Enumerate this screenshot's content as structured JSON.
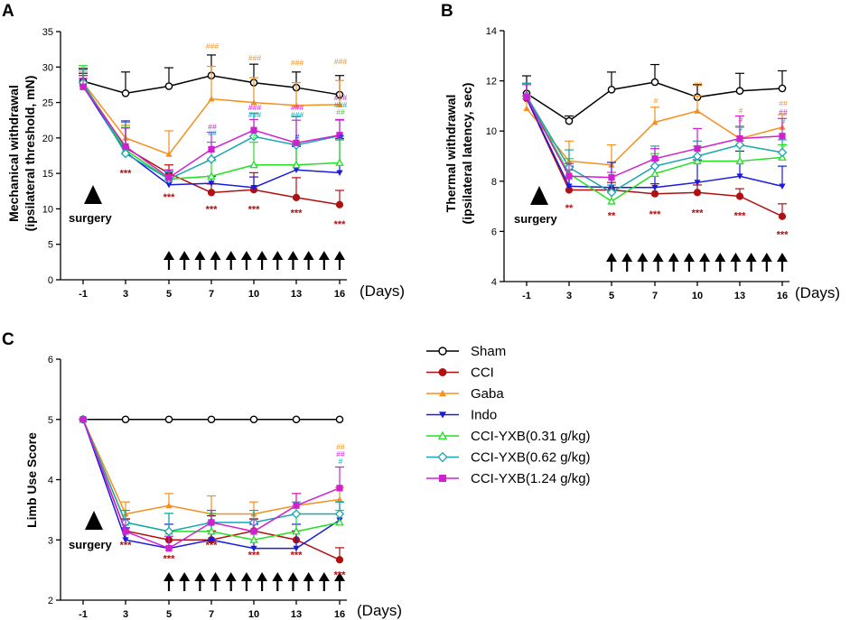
{
  "figure": {
    "x_unit_label": "(Days)",
    "surgery_label": "surgery"
  },
  "legend": [
    {
      "name": "Sham",
      "color": "#000000",
      "marker": "open-circle"
    },
    {
      "name": "CCI",
      "color": "#b01010",
      "marker": "filled-circle"
    },
    {
      "name": "Gaba",
      "color": "#f5901e",
      "marker": "triangle-up"
    },
    {
      "name": "Indo",
      "color": "#1a1ae0",
      "marker": "triangle-down"
    },
    {
      "name": "CCI-YXB(0.31 g/kg)",
      "color": "#22e022",
      "marker": "open-triangle"
    },
    {
      "name": "CCI-YXB(0.62 g/kg)",
      "color": "#1aa6b0",
      "marker": "open-diamond"
    },
    {
      "name": "CCI-YXB(1.24 g/kg)",
      "color": "#d020d0",
      "marker": "filled-square"
    }
  ],
  "chart_data": [
    {
      "panel": "A",
      "type": "line",
      "ylabel_line1": "Mechanical withdrawal",
      "ylabel_line2": "(ipsilateral threshold, mN)",
      "ylim": [
        0,
        35
      ],
      "yticks": [
        0,
        5,
        10,
        15,
        20,
        25,
        30,
        35
      ],
      "x_ticks": [
        "-1",
        "3",
        "5",
        "7",
        "10",
        "13",
        "16"
      ],
      "x": [
        "-1",
        "3",
        "5",
        "7",
        "10",
        "13",
        "16"
      ],
      "series": [
        {
          "name": "Sham",
          "values": [
            28.0,
            26.3,
            27.3,
            28.8,
            27.8,
            27.1,
            26.1
          ],
          "err": [
            1.8,
            3.0,
            2.6,
            2.9,
            2.6,
            2.2,
            2.7
          ]
        },
        {
          "name": "CCI",
          "values": [
            27.6,
            18.6,
            15.0,
            12.3,
            12.7,
            11.6,
            10.6
          ],
          "err": [
            1.2,
            2.8,
            1.2,
            1.2,
            2.4,
            2.8,
            2.0
          ]
        },
        {
          "name": "Gaba",
          "values": [
            27.8,
            20.0,
            17.7,
            25.5,
            25.0,
            24.6,
            24.7
          ],
          "err": [
            1.5,
            1.8,
            3.3,
            4.6,
            3.5,
            3.2,
            3.4
          ]
        },
        {
          "name": "Indo",
          "values": [
            27.3,
            18.0,
            13.4,
            13.6,
            13.0,
            15.5,
            15.1
          ],
          "err": [
            1.8,
            4.4,
            1.8,
            1.0,
            1.5,
            3.3,
            4.8
          ]
        },
        {
          "name": "CCI-YXB(0.31 g/kg)",
          "values": [
            27.7,
            18.3,
            14.2,
            14.6,
            16.2,
            16.2,
            16.5
          ],
          "err": [
            2.5,
            3.2,
            1.1,
            2.2,
            3.2,
            3.1,
            3.2
          ]
        },
        {
          "name": "CCI-YXB(0.62 g/kg)",
          "values": [
            27.8,
            17.8,
            14.2,
            17.0,
            20.2,
            19.0,
            20.3
          ],
          "err": [
            1.8,
            4.4,
            1.0,
            2.4,
            3.3,
            4.0,
            2.2
          ]
        },
        {
          "name": "CCI-YXB(1.24 g/kg)",
          "values": [
            27.2,
            18.8,
            14.4,
            18.4,
            21.1,
            19.3,
            20.4
          ],
          "err": [
            1.2,
            2.6,
            1.1,
            2.4,
            1.5,
            3.2,
            2.2
          ]
        }
      ],
      "significance_below": [
        {
          "x": "3",
          "y": 14.6,
          "text": "***"
        },
        {
          "x": "5",
          "y": 11.2,
          "text": "***"
        },
        {
          "x": "7",
          "y": 9.5,
          "text": "***"
        },
        {
          "x": "10",
          "y": 9.5,
          "text": "***"
        },
        {
          "x": "13",
          "y": 9.0,
          "text": "***"
        },
        {
          "x": "16",
          "y": 7.4,
          "text": "***"
        }
      ],
      "significance_above": [
        {
          "x": "7",
          "items": [
            {
              "text": "###",
              "color": "#f5901e",
              "y": 32.6
            },
            {
              "text": "##",
              "color": "#d020d0",
              "y": 21.2
            },
            {
              "text": "##",
              "color": "#1aa6b0",
              "y": 20.3
            }
          ]
        },
        {
          "x": "10",
          "items": [
            {
              "text": "###",
              "color": "#f5901e",
              "y": 30.9
            },
            {
              "text": "###",
              "color": "#d020d0",
              "y": 23.9
            },
            {
              "text": "###",
              "color": "#1aa6b0",
              "y": 22.9
            },
            {
              "text": "#",
              "color": "#22e022",
              "y": 19.8
            }
          ]
        },
        {
          "x": "13",
          "items": [
            {
              "text": "###",
              "color": "#f5901e",
              "y": 30.2
            },
            {
              "text": "###",
              "color": "#d020d0",
              "y": 23.9
            },
            {
              "text": "###",
              "color": "#1aa6b0",
              "y": 22.9
            },
            {
              "text": "#",
              "color": "#1a1ae0",
              "y": 19.8
            }
          ]
        },
        {
          "x": "16",
          "items": [
            {
              "text": "###",
              "color": "#f5901e",
              "y": 30.4
            },
            {
              "text": "###",
              "color": "#d020d0",
              "y": 25.3
            },
            {
              "text": "###",
              "color": "#1aa6b0",
              "y": 24.3
            },
            {
              "text": "##",
              "color": "#22e022",
              "y": 23.3
            },
            {
              "text": "#",
              "color": "#1a1ae0",
              "y": 19.8
            }
          ]
        }
      ]
    },
    {
      "panel": "B",
      "type": "line",
      "ylabel_line1": "Thermal withdrawal",
      "ylabel_line2": "(ipsilateral latency, sec)",
      "ylim": [
        4,
        14
      ],
      "yticks": [
        4,
        6,
        8,
        10,
        12,
        14
      ],
      "x_ticks": [
        "-1",
        "3",
        "5",
        "7",
        "10",
        "13",
        "16"
      ],
      "x": [
        "-1",
        "3",
        "5",
        "7",
        "10",
        "13",
        "16"
      ],
      "series": [
        {
          "name": "Sham",
          "values": [
            11.5,
            10.4,
            11.65,
            11.95,
            11.35,
            11.6,
            11.7
          ],
          "err": [
            0.7,
            0.2,
            0.7,
            0.7,
            0.5,
            0.7,
            0.7
          ]
        },
        {
          "name": "CCI",
          "values": [
            11.3,
            7.65,
            7.65,
            7.5,
            7.55,
            7.4,
            6.6
          ],
          "err": [
            0.6,
            0.8,
            0.3,
            0.4,
            0.3,
            0.3,
            0.5
          ]
        },
        {
          "name": "Gaba",
          "values": [
            10.9,
            8.8,
            8.65,
            10.35,
            10.8,
            9.7,
            10.15
          ],
          "err": [
            0.4,
            0.8,
            0.8,
            0.6,
            0.6,
            0.5,
            0.5
          ]
        },
        {
          "name": "Indo",
          "values": [
            11.3,
            7.8,
            7.75,
            7.75,
            7.95,
            8.2,
            7.8
          ],
          "err": [
            0.6,
            0.8,
            1.0,
            1.1,
            0.9,
            1.0,
            0.8
          ]
        },
        {
          "name": "CCI-YXB(0.31 g/kg)",
          "values": [
            11.4,
            8.3,
            7.2,
            8.3,
            8.8,
            8.8,
            8.95
          ],
          "err": [
            0.5,
            0.6,
            0.4,
            0.8,
            0.6,
            0.8,
            0.5
          ]
        },
        {
          "name": "CCI-YXB(0.62 g/kg)",
          "values": [
            11.4,
            8.55,
            7.55,
            8.6,
            9.0,
            9.45,
            9.15
          ],
          "err": [
            0.5,
            0.7,
            0.3,
            0.8,
            0.6,
            0.7,
            0.5
          ]
        },
        {
          "name": "CCI-YXB(1.24 g/kg)",
          "values": [
            11.35,
            8.2,
            8.15,
            8.9,
            9.3,
            9.7,
            9.8
          ],
          "err": [
            0.5,
            0.5,
            0.2,
            0.4,
            0.8,
            0.9,
            0.7
          ]
        }
      ],
      "significance_below": [
        {
          "x": "3",
          "y": 6.8,
          "text": "**"
        },
        {
          "x": "5",
          "y": 6.5,
          "text": "**"
        },
        {
          "x": "7",
          "y": 6.55,
          "text": "***"
        },
        {
          "x": "10",
          "y": 6.6,
          "text": "***"
        },
        {
          "x": "13",
          "y": 6.5,
          "text": "***"
        },
        {
          "x": "16",
          "y": 5.75,
          "text": "***"
        }
      ],
      "significance_above": [
        {
          "x": "7",
          "items": [
            {
              "text": "#",
              "color": "#f5901e",
              "y": 11.1
            }
          ]
        },
        {
          "x": "10",
          "items": [
            {
              "text": "##",
              "color": "#f5901e",
              "y": 11.75
            }
          ]
        },
        {
          "x": "13",
          "items": [
            {
              "text": "#",
              "color": "#f5901e",
              "y": 10.7
            },
            {
              "text": "#",
              "color": "#d020d0",
              "y": 10.35
            },
            {
              "text": "#",
              "color": "#1aa6b0",
              "y": 10.0
            }
          ]
        },
        {
          "x": "16",
          "items": [
            {
              "text": "##",
              "color": "#f5901e",
              "y": 11.0
            },
            {
              "text": "##",
              "color": "#d020d0",
              "y": 10.65
            },
            {
              "text": "#",
              "color": "#1aa6b0",
              "y": 10.3
            },
            {
              "text": "#",
              "color": "#22e022",
              "y": 9.3
            }
          ]
        }
      ]
    },
    {
      "panel": "C",
      "type": "line",
      "ylabel_line1": "Limb Use Score",
      "ylabel_line2": "",
      "ylim": [
        2,
        6
      ],
      "yticks": [
        2,
        3,
        4,
        5,
        6
      ],
      "x_ticks": [
        "-1",
        "3",
        "5",
        "7",
        "10",
        "13",
        "16"
      ],
      "x": [
        "-1",
        "3",
        "5",
        "7",
        "10",
        "13",
        "16"
      ],
      "series": [
        {
          "name": "Sham",
          "values": [
            5.0,
            5.0,
            5.0,
            5.0,
            5.0,
            5.0,
            5.0
          ],
          "err": [
            0,
            0,
            0,
            0,
            0,
            0,
            0
          ]
        },
        {
          "name": "CCI",
          "values": [
            5.0,
            3.15,
            3.0,
            3.0,
            3.15,
            3.0,
            2.67
          ],
          "err": [
            0,
            0.2,
            0.15,
            0.15,
            0.2,
            0.15,
            0.2
          ]
        },
        {
          "name": "Gaba",
          "values": [
            5.0,
            3.43,
            3.57,
            3.43,
            3.43,
            3.57,
            3.67
          ],
          "err": [
            0,
            0.2,
            0.2,
            0.3,
            0.2,
            0.2,
            0.2
          ]
        },
        {
          "name": "Indo",
          "values": [
            5.0,
            3.0,
            2.86,
            3.0,
            2.86,
            2.86,
            3.33
          ],
          "err": [
            0,
            0.2,
            0.4,
            0.4,
            0.4,
            0.4,
            0.3
          ]
        },
        {
          "name": "CCI-YXB(0.31 g/kg)",
          "values": [
            5.0,
            3.29,
            3.14,
            3.14,
            3.0,
            3.14,
            3.29
          ],
          "err": [
            0,
            0.2,
            0.3,
            0.3,
            0.3,
            0.3,
            0.2
          ]
        },
        {
          "name": "CCI-YXB(0.62 g/kg)",
          "values": [
            5.0,
            3.29,
            3.14,
            3.29,
            3.29,
            3.43,
            3.43
          ],
          "err": [
            0,
            0.2,
            0.3,
            0.2,
            0.2,
            0.2,
            0.2
          ]
        },
        {
          "name": "CCI-YXB(1.24 g/kg)",
          "values": [
            5.0,
            3.14,
            2.86,
            3.29,
            3.14,
            3.57,
            3.86
          ],
          "err": [
            0,
            0.2,
            0.2,
            0.2,
            0.2,
            0.2,
            0.35
          ]
        }
      ],
      "significance_below": [
        {
          "x": "3",
          "y": 2.86,
          "text": "***"
        },
        {
          "x": "5",
          "y": 2.64,
          "text": "***"
        },
        {
          "x": "7",
          "y": 2.86,
          "text": "***"
        },
        {
          "x": "10",
          "y": 2.7,
          "text": "***"
        },
        {
          "x": "13",
          "y": 2.7,
          "text": "***"
        },
        {
          "x": "16",
          "y": 2.37,
          "text": "***"
        }
      ],
      "significance_above": [
        {
          "x": "16",
          "items": [
            {
              "text": "##",
              "color": "#f5901e",
              "y": 4.5
            },
            {
              "text": "##",
              "color": "#d020d0",
              "y": 4.38
            },
            {
              "text": "#",
              "color": "#1aa6b0",
              "y": 4.26
            }
          ]
        }
      ]
    }
  ]
}
